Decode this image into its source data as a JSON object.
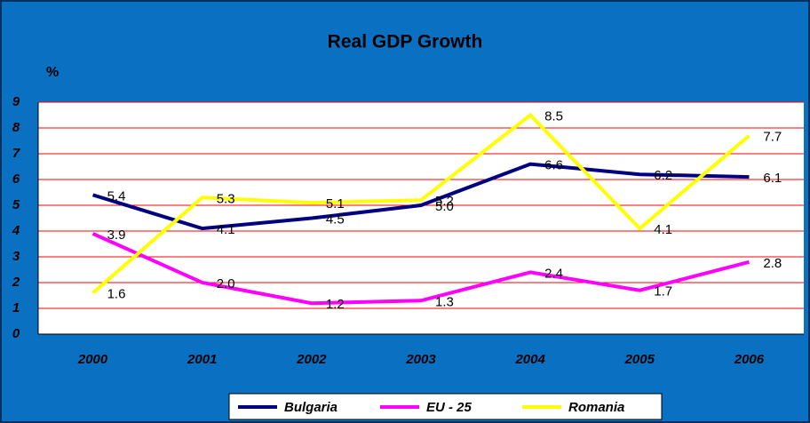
{
  "chart_data": {
    "type": "line",
    "title": "Real GDP Growth",
    "y_label": "%",
    "categories": [
      "2000",
      "2001",
      "2002",
      "2003",
      "2004",
      "2005",
      "2006"
    ],
    "series": [
      {
        "name": "Bulgaria",
        "color": "#000080",
        "values": [
          5.4,
          4.1,
          4.5,
          5.0,
          6.6,
          6.2,
          6.1
        ],
        "value_labels": [
          "5.4",
          "4.1",
          "4.5",
          "5.0",
          "6.6",
          "6.2",
          "6.1"
        ]
      },
      {
        "name": "EU - 25",
        "color": "#ff00ff",
        "values": [
          3.9,
          2.0,
          1.2,
          1.3,
          2.4,
          1.7,
          2.8
        ],
        "value_labels": [
          "3.9",
          "2.0",
          "1.2",
          "1.3",
          "2.4",
          "1.7",
          "2.8"
        ]
      },
      {
        "name": "Romania",
        "color": "#ffff00",
        "values": [
          1.6,
          5.3,
          5.1,
          5.2,
          8.5,
          4.1,
          7.7
        ],
        "value_labels": [
          "1.6",
          "5.3",
          "5.1",
          "5.2",
          "8.5",
          "4.1",
          "7.7"
        ]
      }
    ],
    "ylim": [
      0,
      9
    ],
    "yticks": [
      0,
      1,
      2,
      3,
      4,
      5,
      6,
      7,
      8,
      9
    ],
    "grid": true,
    "grid_color": "#ff0000",
    "legend": "bottom"
  }
}
